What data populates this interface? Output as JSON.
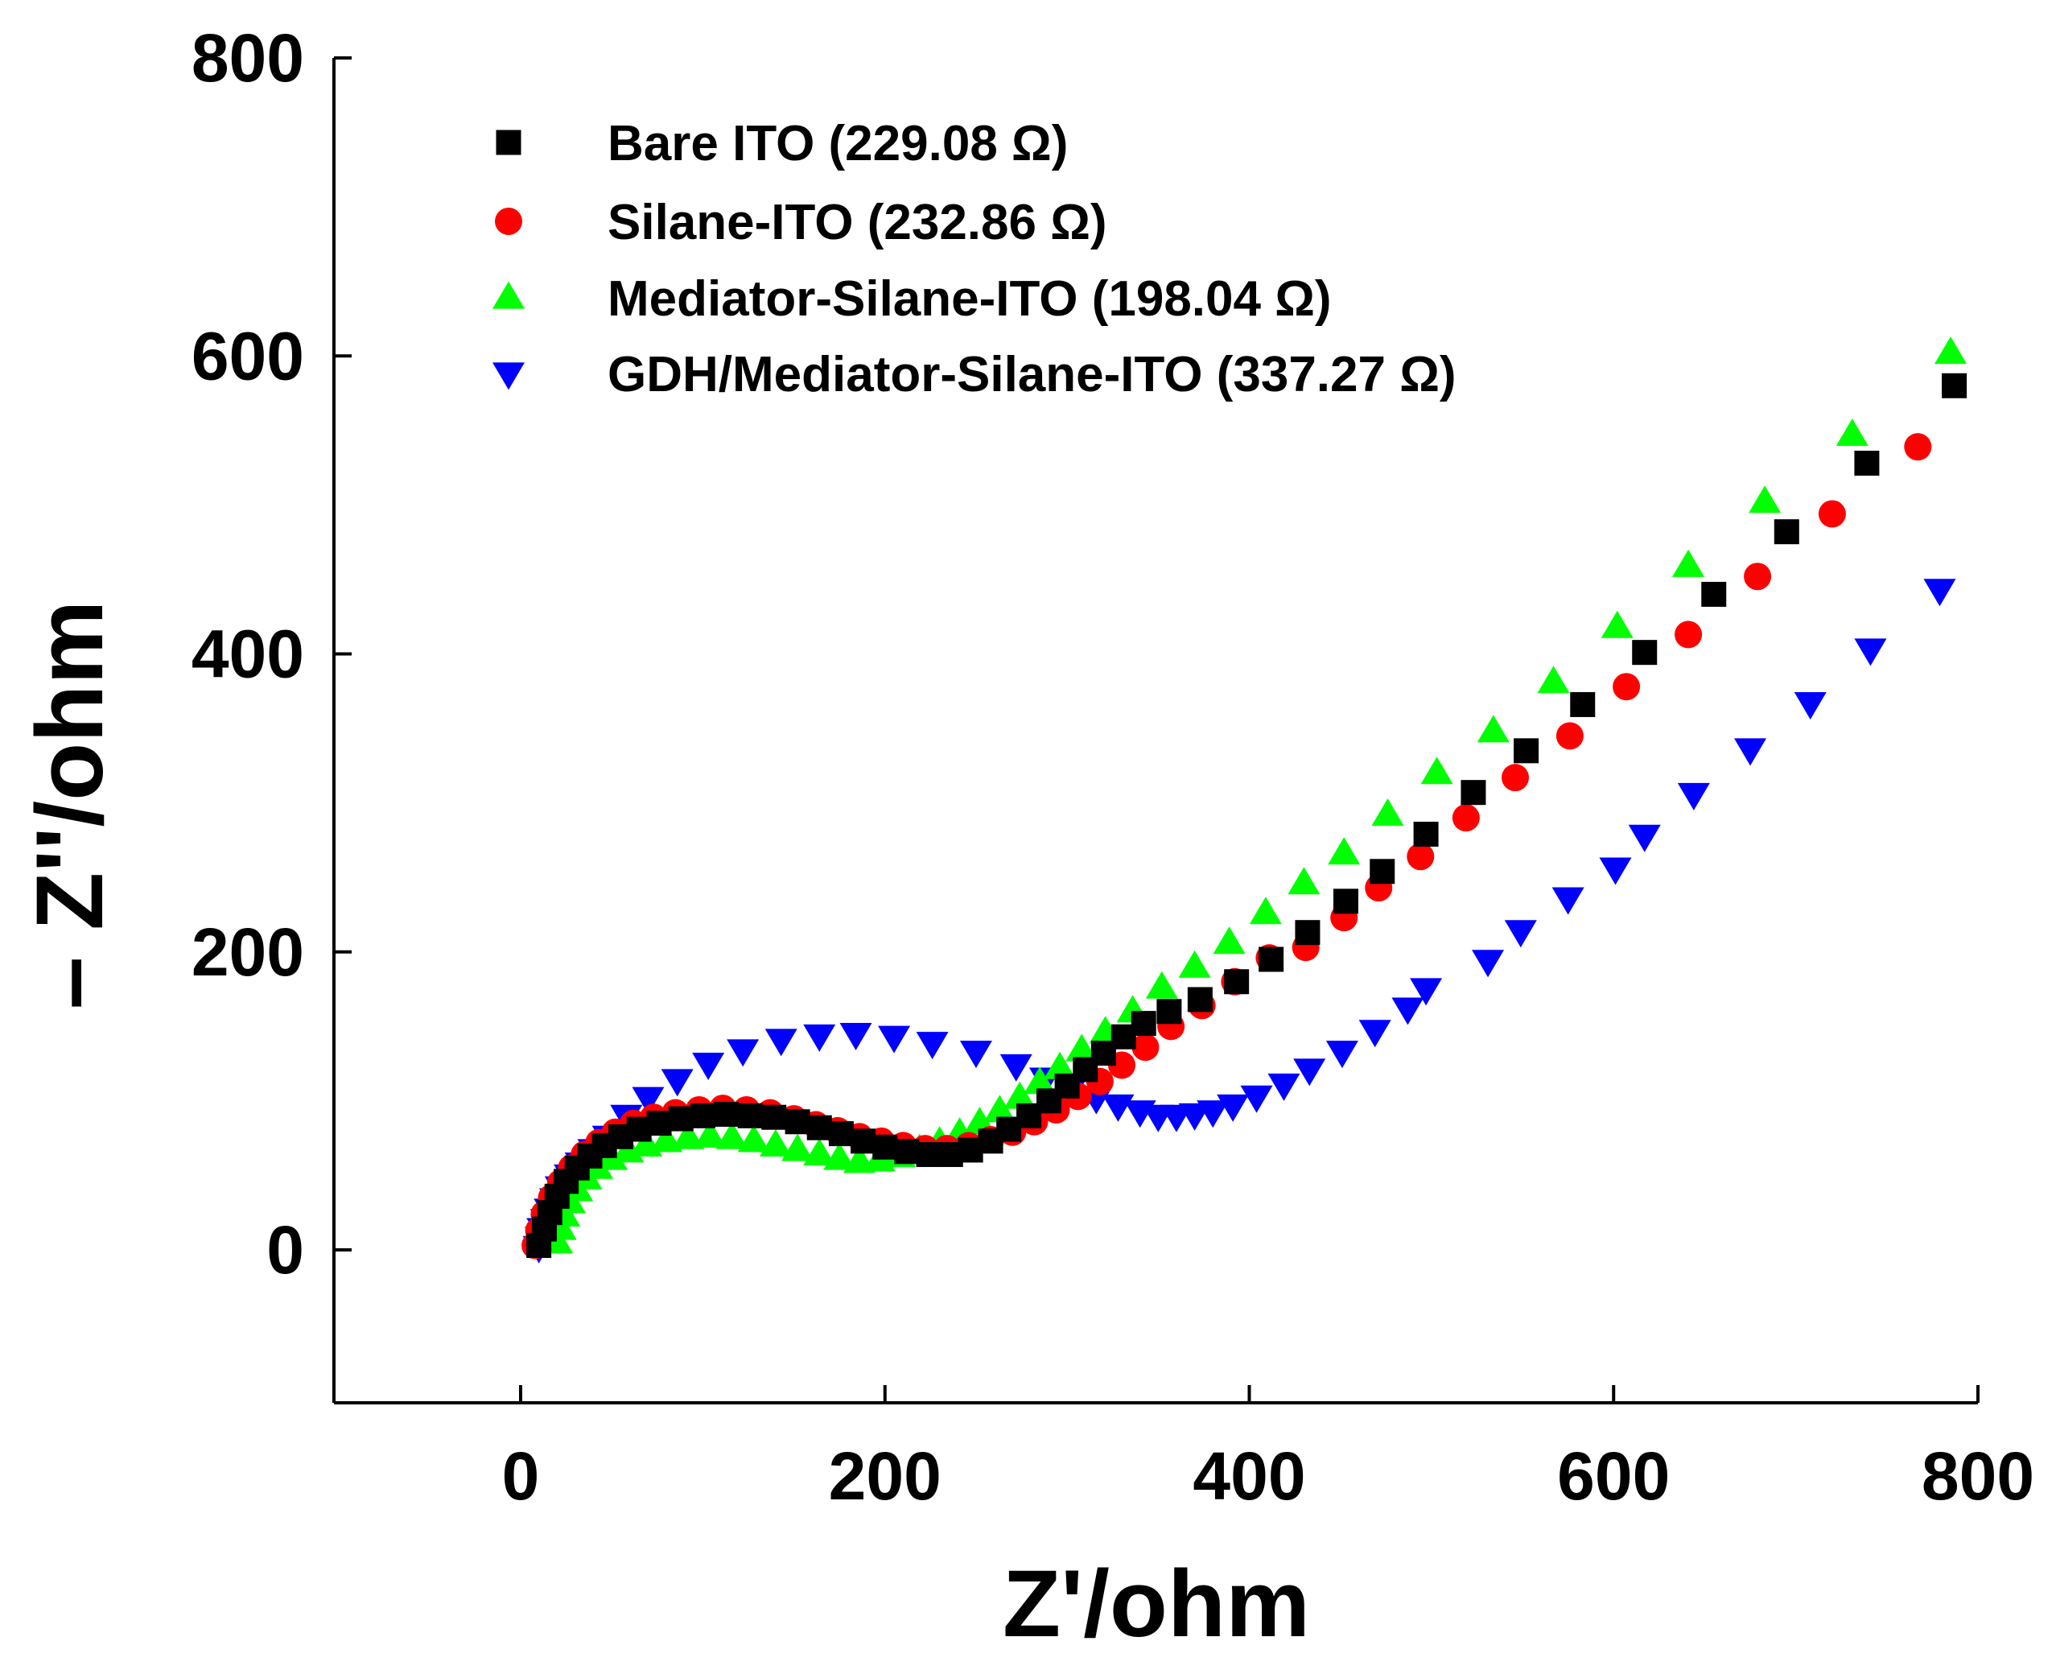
{
  "chart_data": {
    "type": "scatter",
    "title": "",
    "xlabel": "Z'/ohm",
    "ylabel": "– Z''/ohm",
    "xlim": [
      -100,
      800
    ],
    "ylim": [
      -100,
      800
    ],
    "xticks": [
      0,
      200,
      400,
      600,
      800
    ],
    "yticks": [
      0,
      200,
      400,
      600,
      800
    ],
    "x_tick_labels": [
      "0",
      "200",
      "400",
      "600",
      "800"
    ],
    "y_tick_labels": [
      "0",
      "200",
      "400",
      "600",
      "800"
    ],
    "grid": false,
    "legend_position": "top-left",
    "series": [
      {
        "name": "Bare ITO (229.08 Ω)",
        "marker": "square",
        "color": "#000000",
        "points": [
          [
            10,
            3
          ],
          [
            13,
            14
          ],
          [
            16,
            25
          ],
          [
            20,
            36
          ],
          [
            25,
            46
          ],
          [
            31,
            55
          ],
          [
            38,
            63
          ],
          [
            46,
            70
          ],
          [
            55,
            76
          ],
          [
            65,
            81
          ],
          [
            76,
            85
          ],
          [
            88,
            88
          ],
          [
            100,
            90
          ],
          [
            113,
            91
          ],
          [
            126,
            90
          ],
          [
            139,
            89
          ],
          [
            152,
            86
          ],
          [
            164,
            82
          ],
          [
            176,
            78
          ],
          [
            188,
            73
          ],
          [
            200,
            69
          ],
          [
            212,
            66
          ],
          [
            224,
            64
          ],
          [
            236,
            64
          ],
          [
            247,
            67
          ],
          [
            258,
            73
          ],
          [
            268,
            81
          ],
          [
            279,
            90
          ],
          [
            290,
            100
          ],
          [
            300,
            110
          ],
          [
            310,
            121
          ],
          [
            320,
            132
          ],
          [
            331,
            143
          ],
          [
            342,
            152
          ],
          [
            356,
            160
          ],
          [
            373,
            168
          ],
          [
            393,
            180
          ],
          [
            412,
            195
          ],
          [
            432,
            213
          ],
          [
            453,
            234
          ],
          [
            473,
            254
          ],
          [
            497,
            279
          ],
          [
            523,
            307
          ],
          [
            552,
            335
          ],
          [
            583,
            366
          ],
          [
            617,
            401
          ],
          [
            655,
            440
          ],
          [
            695,
            482
          ],
          [
            739,
            528
          ],
          [
            787,
            580
          ]
        ]
      },
      {
        "name": "Silane-ITO (232.86 Ω)",
        "marker": "circle",
        "color": "#ff0000",
        "points": [
          [
            8,
            3
          ],
          [
            10,
            13
          ],
          [
            13,
            24
          ],
          [
            17,
            35
          ],
          [
            22,
            45
          ],
          [
            28,
            55
          ],
          [
            35,
            64
          ],
          [
            43,
            72
          ],
          [
            52,
            79
          ],
          [
            62,
            85
          ],
          [
            73,
            89
          ],
          [
            85,
            92
          ],
          [
            98,
            94
          ],
          [
            111,
            95
          ],
          [
            124,
            94
          ],
          [
            137,
            92
          ],
          [
            150,
            88
          ],
          [
            162,
            84
          ],
          [
            174,
            80
          ],
          [
            186,
            76
          ],
          [
            198,
            73
          ],
          [
            210,
            70
          ],
          [
            222,
            68
          ],
          [
            234,
            68
          ],
          [
            246,
            70
          ],
          [
            258,
            74
          ],
          [
            270,
            79
          ],
          [
            282,
            86
          ],
          [
            294,
            94
          ],
          [
            306,
            103
          ],
          [
            318,
            113
          ],
          [
            330,
            124
          ],
          [
            343,
            136
          ],
          [
            357,
            150
          ],
          [
            374,
            164
          ],
          [
            392,
            180
          ],
          [
            411,
            196
          ],
          [
            431,
            203
          ],
          [
            452,
            223
          ],
          [
            471,
            243
          ],
          [
            494,
            264
          ],
          [
            519,
            290
          ],
          [
            546,
            317
          ],
          [
            576,
            345
          ],
          [
            607,
            378
          ],
          [
            641,
            413
          ],
          [
            679,
            452
          ],
          [
            720,
            494
          ],
          [
            767,
            539
          ]
        ]
      },
      {
        "name": "Mediator-Silane-ITO (198.04 Ω)",
        "marker": "triangle-up",
        "color": "#00ff00",
        "points": [
          [
            20,
            5
          ],
          [
            22,
            14
          ],
          [
            24,
            23
          ],
          [
            27,
            32
          ],
          [
            31,
            40
          ],
          [
            36,
            48
          ],
          [
            42,
            55
          ],
          [
            50,
            61
          ],
          [
            59,
            66
          ],
          [
            69,
            70
          ],
          [
            80,
            73
          ],
          [
            92,
            75
          ],
          [
            104,
            76
          ],
          [
            116,
            75
          ],
          [
            128,
            73
          ],
          [
            140,
            70
          ],
          [
            152,
            67
          ],
          [
            164,
            64
          ],
          [
            175,
            61
          ],
          [
            186,
            59
          ],
          [
            197,
            60
          ],
          [
            208,
            63
          ],
          [
            219,
            67
          ],
          [
            230,
            72
          ],
          [
            241,
            78
          ],
          [
            252,
            85
          ],
          [
            263,
            93
          ],
          [
            274,
            102
          ],
          [
            285,
            112
          ],
          [
            296,
            122
          ],
          [
            308,
            134
          ],
          [
            321,
            146
          ],
          [
            336,
            160
          ],
          [
            352,
            176
          ],
          [
            370,
            190
          ],
          [
            389,
            206
          ],
          [
            409,
            226
          ],
          [
            430,
            246
          ],
          [
            452,
            266
          ],
          [
            476,
            292
          ],
          [
            503,
            320
          ],
          [
            534,
            348
          ],
          [
            567,
            381
          ],
          [
            602,
            418
          ],
          [
            641,
            459
          ],
          [
            683,
            502
          ],
          [
            731,
            547
          ],
          [
            785,
            602
          ]
        ]
      },
      {
        "name": "GDH/Mediator-Silane-ITO (337.27 Ω)",
        "marker": "triangle-down",
        "color": "#0000ff",
        "points": [
          [
            10,
            2
          ],
          [
            11,
            8
          ],
          [
            12,
            14
          ],
          [
            14,
            20
          ],
          [
            16,
            27
          ],
          [
            19,
            34
          ],
          [
            22,
            42
          ],
          [
            27,
            50
          ],
          [
            33,
            58
          ],
          [
            40,
            67
          ],
          [
            48,
            76
          ],
          [
            58,
            90
          ],
          [
            70,
            102
          ],
          [
            86,
            114
          ],
          [
            103,
            125
          ],
          [
            122,
            134
          ],
          [
            143,
            141
          ],
          [
            164,
            144
          ],
          [
            184,
            145
          ],
          [
            205,
            143
          ],
          [
            226,
            139
          ],
          [
            250,
            133
          ],
          [
            272,
            124
          ],
          [
            288,
            115
          ],
          [
            302,
            108
          ],
          [
            316,
            102
          ],
          [
            328,
            97
          ],
          [
            340,
            93
          ],
          [
            350,
            90
          ],
          [
            360,
            90
          ],
          [
            370,
            91
          ],
          [
            380,
            93
          ],
          [
            391,
            97
          ],
          [
            404,
            103
          ],
          [
            419,
            111
          ],
          [
            433,
            121
          ],
          [
            451,
            133
          ],
          [
            469,
            147
          ],
          [
            487,
            162
          ],
          [
            497,
            175
          ],
          [
            531,
            194
          ],
          [
            549,
            214
          ],
          [
            575,
            236
          ],
          [
            601,
            256
          ],
          [
            617,
            278
          ],
          [
            644,
            306
          ],
          [
            675,
            336
          ],
          [
            708,
            367
          ],
          [
            741,
            403
          ],
          [
            779,
            443
          ]
        ]
      }
    ]
  }
}
